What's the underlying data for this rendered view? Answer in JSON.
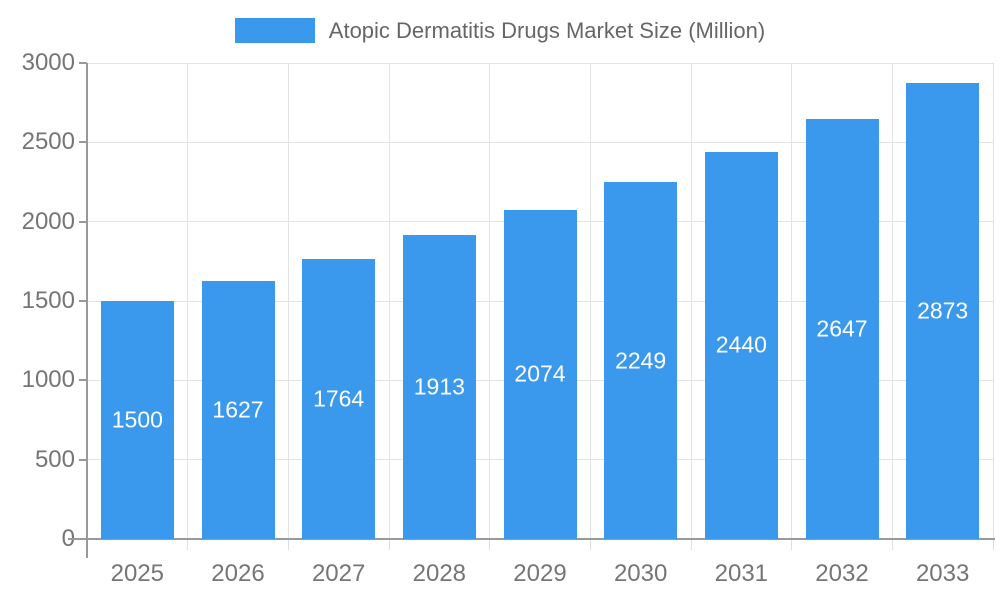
{
  "legend": {
    "title": "Atopic Dermatitis Drugs Market Size (Million)"
  },
  "chart_data": {
    "type": "bar",
    "title": "Atopic Dermatitis Drugs Market Size (Million)",
    "categories": [
      "2025",
      "2026",
      "2027",
      "2028",
      "2029",
      "2030",
      "2031",
      "2032",
      "2033"
    ],
    "values": [
      1500,
      1627,
      1764,
      1913,
      2074,
      2249,
      2440,
      2647,
      2873
    ],
    "xlabel": "",
    "ylabel": "",
    "ylim": [
      0,
      3000
    ],
    "yticks": [
      0,
      500,
      1000,
      1500,
      2000,
      2500,
      3000
    ],
    "grid": true,
    "legend_position": "top-center",
    "bar_labels": "inside-middle"
  },
  "style": {
    "bar_color": "#3a99ec",
    "bar_label_color": "#ffffff",
    "axis_color": "#999999",
    "grid_color": "#e3e3e3",
    "x_tick_color": "#dddddd",
    "axis_label_color": "#757575",
    "title_color": "#666666",
    "background": "#ffffff"
  }
}
